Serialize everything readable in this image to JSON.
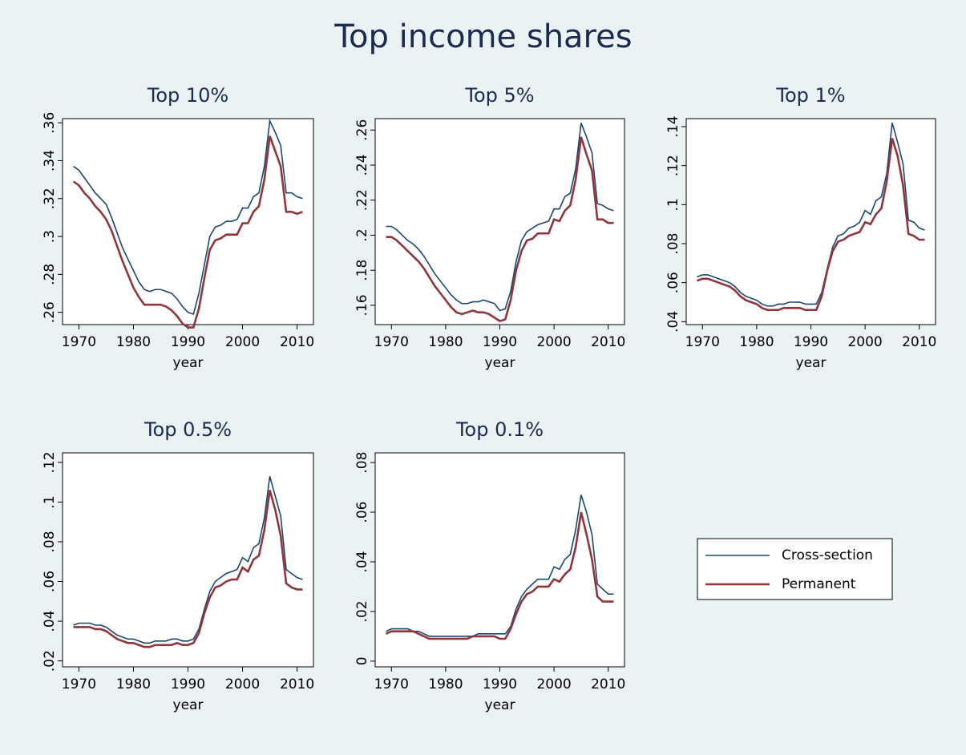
{
  "title": "Top income shares",
  "chart_data": [
    {
      "type": "line",
      "title": "Top 10%",
      "xlabel": "year",
      "x": [
        1969,
        1970,
        1971,
        1972,
        1973,
        1974,
        1975,
        1976,
        1977,
        1978,
        1979,
        1980,
        1981,
        1982,
        1983,
        1984,
        1985,
        1986,
        1987,
        1988,
        1989,
        1990,
        1991,
        1992,
        1993,
        1994,
        1995,
        1996,
        1997,
        1998,
        1999,
        2000,
        2001,
        2002,
        2003,
        2004,
        2005,
        2006,
        2007,
        2008,
        2009,
        2010,
        2011
      ],
      "xlim": [
        1967,
        2013
      ],
      "xticks": [
        1970,
        1980,
        1990,
        2000,
        2010
      ],
      "ylim": [
        0.2535,
        0.3622
      ],
      "yticks": [
        {
          "value": 0.26,
          "label": ".26"
        },
        {
          "value": 0.28,
          "label": ".28"
        },
        {
          "value": 0.3,
          "label": ".3"
        },
        {
          "value": 0.32,
          "label": ".32"
        },
        {
          "value": 0.34,
          "label": ".34"
        },
        {
          "value": 0.36,
          "label": ".36"
        }
      ],
      "series": [
        {
          "name": "Cross-section",
          "color": "#1a476f",
          "values": [
            0.337,
            0.335,
            0.331,
            0.327,
            0.323,
            0.32,
            0.317,
            0.31,
            0.302,
            0.294,
            0.288,
            0.282,
            0.276,
            0.272,
            0.271,
            0.272,
            0.272,
            0.271,
            0.27,
            0.267,
            0.263,
            0.26,
            0.259,
            0.27,
            0.285,
            0.3,
            0.305,
            0.306,
            0.308,
            0.308,
            0.309,
            0.315,
            0.315,
            0.321,
            0.323,
            0.337,
            0.361,
            0.355,
            0.348,
            0.323,
            0.323,
            0.321,
            0.32
          ]
        },
        {
          "name": "Permanent",
          "color": "#90353b",
          "values": [
            0.329,
            0.327,
            0.323,
            0.32,
            0.316,
            0.313,
            0.309,
            0.303,
            0.295,
            0.287,
            0.28,
            0.273,
            0.268,
            0.264,
            0.264,
            0.264,
            0.264,
            0.263,
            0.261,
            0.258,
            0.254,
            0.252,
            0.252,
            0.262,
            0.278,
            0.293,
            0.298,
            0.299,
            0.301,
            0.301,
            0.301,
            0.307,
            0.307,
            0.313,
            0.316,
            0.33,
            0.353,
            0.345,
            0.337,
            0.313,
            0.313,
            0.312,
            0.313
          ]
        }
      ]
    },
    {
      "type": "line",
      "title": "Top 5%",
      "xlabel": "year",
      "x": [
        1969,
        1970,
        1971,
        1972,
        1973,
        1974,
        1975,
        1976,
        1977,
        1978,
        1979,
        1980,
        1981,
        1982,
        1983,
        1984,
        1985,
        1986,
        1987,
        1988,
        1989,
        1990,
        1991,
        1992,
        1993,
        1994,
        1995,
        1996,
        1997,
        1998,
        1999,
        2000,
        2001,
        2002,
        2003,
        2004,
        2005,
        2006,
        2007,
        2008,
        2009,
        2010,
        2011
      ],
      "xlim": [
        1967,
        2013
      ],
      "xticks": [
        1970,
        1980,
        1990,
        2000,
        2010
      ],
      "ylim": [
        0.149,
        0.2665
      ],
      "yticks": [
        {
          "value": 0.16,
          "label": ".16"
        },
        {
          "value": 0.18,
          "label": ".18"
        },
        {
          "value": 0.2,
          "label": ".2"
        },
        {
          "value": 0.22,
          "label": ".22"
        },
        {
          "value": 0.24,
          "label": ".24"
        },
        {
          "value": 0.26,
          "label": ".26"
        }
      ],
      "series": [
        {
          "color": "#1a476f",
          "values": [
            0.205,
            0.205,
            0.203,
            0.2,
            0.197,
            0.195,
            0.192,
            0.188,
            0.183,
            0.178,
            0.174,
            0.17,
            0.166,
            0.163,
            0.161,
            0.161,
            0.162,
            0.162,
            0.163,
            0.162,
            0.161,
            0.157,
            0.158,
            0.168,
            0.185,
            0.197,
            0.202,
            0.204,
            0.206,
            0.207,
            0.208,
            0.215,
            0.215,
            0.222,
            0.224,
            0.238,
            0.264,
            0.256,
            0.247,
            0.218,
            0.217,
            0.215,
            0.214
          ]
        },
        {
          "color": "#90353b",
          "values": [
            0.199,
            0.199,
            0.197,
            0.194,
            0.191,
            0.188,
            0.185,
            0.181,
            0.176,
            0.171,
            0.167,
            0.163,
            0.159,
            0.156,
            0.155,
            0.156,
            0.157,
            0.156,
            0.156,
            0.155,
            0.153,
            0.151,
            0.152,
            0.163,
            0.18,
            0.191,
            0.197,
            0.198,
            0.201,
            0.201,
            0.201,
            0.209,
            0.208,
            0.214,
            0.217,
            0.232,
            0.256,
            0.246,
            0.237,
            0.209,
            0.209,
            0.207,
            0.207
          ]
        }
      ]
    },
    {
      "type": "line",
      "title": "Top 1%",
      "xlabel": "year",
      "x": [
        1969,
        1970,
        1971,
        1972,
        1973,
        1974,
        1975,
        1976,
        1977,
        1978,
        1979,
        1980,
        1981,
        1982,
        1983,
        1984,
        1985,
        1986,
        1987,
        1988,
        1989,
        1990,
        1991,
        1992,
        1993,
        1994,
        1995,
        1996,
        1997,
        1998,
        1999,
        2000,
        2001,
        2002,
        2003,
        2004,
        2005,
        2006,
        2007,
        2008,
        2009,
        2010,
        2011
      ],
      "xlim": [
        1967,
        2013
      ],
      "xticks": [
        1970,
        1980,
        1990,
        2000,
        2010
      ],
      "ylim": [
        0.0385,
        0.1441
      ],
      "yticks": [
        {
          "value": 0.04,
          "label": ".04"
        },
        {
          "value": 0.06,
          "label": ".06"
        },
        {
          "value": 0.08,
          "label": ".08"
        },
        {
          "value": 0.1,
          "label": ".1"
        },
        {
          "value": 0.12,
          "label": ".12"
        },
        {
          "value": 0.14,
          "label": ".14"
        }
      ],
      "series": [
        {
          "color": "#1a476f",
          "values": [
            0.063,
            0.064,
            0.064,
            0.063,
            0.062,
            0.061,
            0.06,
            0.058,
            0.055,
            0.053,
            0.052,
            0.051,
            0.049,
            0.048,
            0.048,
            0.049,
            0.049,
            0.05,
            0.05,
            0.05,
            0.049,
            0.049,
            0.049,
            0.055,
            0.067,
            0.078,
            0.084,
            0.085,
            0.088,
            0.089,
            0.091,
            0.097,
            0.095,
            0.102,
            0.104,
            0.116,
            0.142,
            0.132,
            0.121,
            0.092,
            0.091,
            0.088,
            0.087
          ]
        },
        {
          "color": "#90353b",
          "values": [
            0.061,
            0.062,
            0.062,
            0.061,
            0.06,
            0.059,
            0.058,
            0.056,
            0.053,
            0.051,
            0.05,
            0.049,
            0.047,
            0.046,
            0.046,
            0.046,
            0.047,
            0.047,
            0.047,
            0.047,
            0.046,
            0.046,
            0.046,
            0.053,
            0.066,
            0.076,
            0.081,
            0.082,
            0.084,
            0.085,
            0.086,
            0.091,
            0.09,
            0.095,
            0.098,
            0.112,
            0.134,
            0.125,
            0.11,
            0.085,
            0.084,
            0.082,
            0.082
          ]
        }
      ]
    },
    {
      "type": "line",
      "title": "Top 0.5%",
      "xlabel": "year",
      "x": [
        1969,
        1970,
        1971,
        1972,
        1973,
        1974,
        1975,
        1976,
        1977,
        1978,
        1979,
        1980,
        1981,
        1982,
        1983,
        1984,
        1985,
        1986,
        1987,
        1988,
        1989,
        1990,
        1991,
        1992,
        1993,
        1994,
        1995,
        1996,
        1997,
        1998,
        1999,
        2000,
        2001,
        2002,
        2003,
        2004,
        2005,
        2006,
        2007,
        2008,
        2009,
        2010,
        2011
      ],
      "xlim": [
        1967,
        2013
      ],
      "xticks": [
        1970,
        1980,
        1990,
        2000,
        2010
      ],
      "ylim": [
        0.017,
        0.1248
      ],
      "yticks": [
        {
          "value": 0.02,
          "label": ".02"
        },
        {
          "value": 0.04,
          "label": ".04"
        },
        {
          "value": 0.06,
          "label": ".06"
        },
        {
          "value": 0.08,
          "label": ".08"
        },
        {
          "value": 0.1,
          "label": ".1"
        },
        {
          "value": 0.12,
          "label": ".12"
        }
      ],
      "series": [
        {
          "color": "#1a476f",
          "values": [
            0.038,
            0.039,
            0.039,
            0.039,
            0.038,
            0.038,
            0.037,
            0.035,
            0.033,
            0.032,
            0.031,
            0.031,
            0.03,
            0.029,
            0.029,
            0.03,
            0.03,
            0.03,
            0.031,
            0.031,
            0.03,
            0.03,
            0.031,
            0.036,
            0.046,
            0.055,
            0.06,
            0.062,
            0.064,
            0.065,
            0.066,
            0.072,
            0.07,
            0.077,
            0.079,
            0.092,
            0.113,
            0.103,
            0.093,
            0.066,
            0.064,
            0.062,
            0.061
          ]
        },
        {
          "color": "#90353b",
          "values": [
            0.037,
            0.037,
            0.037,
            0.037,
            0.036,
            0.036,
            0.035,
            0.033,
            0.031,
            0.03,
            0.029,
            0.029,
            0.028,
            0.027,
            0.027,
            0.028,
            0.028,
            0.028,
            0.028,
            0.029,
            0.028,
            0.028,
            0.029,
            0.034,
            0.044,
            0.052,
            0.057,
            0.058,
            0.06,
            0.061,
            0.061,
            0.067,
            0.065,
            0.071,
            0.073,
            0.086,
            0.106,
            0.096,
            0.083,
            0.059,
            0.057,
            0.056,
            0.056
          ]
        }
      ]
    },
    {
      "type": "line",
      "title": "Top 0.1%",
      "xlabel": "year",
      "x": [
        1969,
        1970,
        1971,
        1972,
        1973,
        1974,
        1975,
        1976,
        1977,
        1978,
        1979,
        1980,
        1981,
        1982,
        1983,
        1984,
        1985,
        1986,
        1987,
        1988,
        1989,
        1990,
        1991,
        1992,
        1993,
        1994,
        1995,
        1996,
        1997,
        1998,
        1999,
        2000,
        2001,
        2002,
        2003,
        2004,
        2005,
        2006,
        2007,
        2008,
        2009,
        2010,
        2011
      ],
      "xlim": [
        1967,
        2013
      ],
      "xticks": [
        1970,
        1980,
        1990,
        2000,
        2010
      ],
      "ylim": [
        -0.0023,
        0.0839
      ],
      "yticks": [
        0,
        {
          "value": 0.02,
          "label": ".02"
        },
        {
          "value": 0.04,
          "label": ".04"
        },
        {
          "value": 0.06,
          "label": ".06"
        },
        {
          "value": 0.08,
          "label": ".08"
        }
      ],
      "series": [
        {
          "color": "#1a476f",
          "values": [
            0.012,
            0.013,
            0.013,
            0.013,
            0.013,
            0.012,
            0.012,
            0.011,
            0.01,
            0.01,
            0.01,
            0.01,
            0.01,
            0.01,
            0.01,
            0.01,
            0.01,
            0.011,
            0.011,
            0.011,
            0.011,
            0.011,
            0.011,
            0.014,
            0.021,
            0.026,
            0.029,
            0.031,
            0.033,
            0.033,
            0.033,
            0.038,
            0.037,
            0.041,
            0.043,
            0.053,
            0.067,
            0.06,
            0.051,
            0.031,
            0.029,
            0.027,
            0.027
          ]
        },
        {
          "color": "#90353b",
          "values": [
            0.011,
            0.012,
            0.012,
            0.012,
            0.012,
            0.012,
            0.011,
            0.01,
            0.009,
            0.009,
            0.009,
            0.009,
            0.009,
            0.009,
            0.009,
            0.009,
            0.01,
            0.01,
            0.01,
            0.01,
            0.01,
            0.009,
            0.009,
            0.013,
            0.019,
            0.024,
            0.027,
            0.028,
            0.03,
            0.03,
            0.03,
            0.033,
            0.032,
            0.035,
            0.037,
            0.046,
            0.06,
            0.051,
            0.041,
            0.026,
            0.024,
            0.024,
            0.024
          ]
        }
      ]
    }
  ]
}
